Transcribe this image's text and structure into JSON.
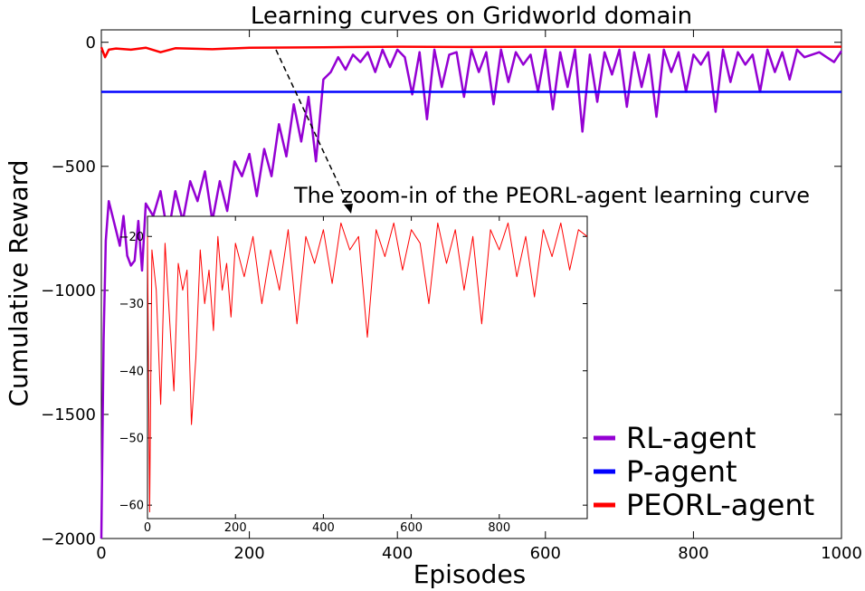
{
  "chart_data": [
    {
      "type": "line",
      "title": "Learning curves on Gridworld domain",
      "xlabel": "Episodes",
      "ylabel": "Cumulative Reward",
      "xlim": [
        0,
        1000
      ],
      "ylim": [
        -2000,
        50
      ],
      "xticks": [
        0,
        200,
        400,
        600,
        800,
        1000
      ],
      "yticks": [
        0,
        -500,
        -1000,
        -1500,
        -2000
      ],
      "legend_position": "bottom-right",
      "series": [
        {
          "name": "RL-agent",
          "color": "#9400d3",
          "x": [
            0,
            3,
            6,
            10,
            15,
            20,
            25,
            30,
            35,
            40,
            45,
            50,
            55,
            60,
            70,
            80,
            90,
            100,
            110,
            120,
            130,
            140,
            150,
            160,
            170,
            180,
            190,
            200,
            210,
            220,
            230,
            240,
            250,
            260,
            270,
            280,
            290,
            300,
            310,
            320,
            330,
            340,
            350,
            360,
            370,
            380,
            390,
            400,
            410,
            420,
            430,
            440,
            450,
            460,
            470,
            480,
            490,
            500,
            510,
            520,
            530,
            540,
            550,
            560,
            570,
            580,
            590,
            600,
            610,
            620,
            630,
            640,
            650,
            660,
            670,
            680,
            690,
            700,
            710,
            720,
            730,
            740,
            750,
            760,
            770,
            780,
            790,
            800,
            810,
            820,
            830,
            840,
            850,
            860,
            870,
            880,
            890,
            900,
            910,
            920,
            930,
            940,
            950,
            960,
            970,
            980,
            990,
            1000
          ],
          "values": [
            -2000,
            -1200,
            -800,
            -640,
            -700,
            -760,
            -820,
            -700,
            -860,
            -900,
            -880,
            -720,
            -920,
            -650,
            -700,
            -600,
            -780,
            -600,
            -720,
            -560,
            -640,
            -520,
            -720,
            -560,
            -680,
            -480,
            -540,
            -450,
            -620,
            -430,
            -540,
            -330,
            -460,
            -250,
            -400,
            -220,
            -480,
            -150,
            -120,
            -60,
            -110,
            -50,
            -80,
            -40,
            -120,
            -30,
            -100,
            -30,
            -60,
            -210,
            -40,
            -310,
            -30,
            -180,
            -50,
            -40,
            -220,
            -30,
            -120,
            -40,
            -250,
            -30,
            -160,
            -40,
            -90,
            -50,
            -200,
            -30,
            -270,
            -40,
            -180,
            -30,
            -360,
            -50,
            -240,
            -40,
            -130,
            -30,
            -260,
            -40,
            -180,
            -50,
            -300,
            -30,
            -120,
            -40,
            -200,
            -50,
            -90,
            -40,
            -280,
            -30,
            -160,
            -40,
            -90,
            -50,
            -200,
            -30,
            -120,
            -40,
            -150,
            -30,
            -60,
            -50,
            -40,
            -60,
            -80,
            -35
          ]
        },
        {
          "name": "P-agent",
          "color": "#0000ff",
          "x": [
            0,
            1000
          ],
          "values": [
            -200,
            -200
          ]
        },
        {
          "name": "PEORL-agent",
          "color": "#ff0000",
          "x": [
            0,
            5,
            10,
            20,
            40,
            60,
            80,
            100,
            150,
            200,
            300,
            400,
            500,
            600,
            700,
            800,
            900,
            1000
          ],
          "values": [
            -20,
            -60,
            -30,
            -25,
            -30,
            -22,
            -40,
            -24,
            -28,
            -22,
            -20,
            -18,
            -19,
            -18,
            -18,
            -18,
            -18,
            -18
          ]
        }
      ]
    },
    {
      "type": "line",
      "title": "The zoom-in of the PEORL-agent learning curve",
      "xlim": [
        0,
        1000
      ],
      "ylim": [
        -62,
        -17
      ],
      "xticks": [
        0,
        200,
        400,
        600,
        800
      ],
      "yticks": [
        -20,
        -30,
        -40,
        -50,
        -60
      ],
      "series": [
        {
          "color": "#ff0000",
          "x": [
            0,
            5,
            10,
            20,
            30,
            40,
            50,
            60,
            70,
            80,
            90,
            100,
            110,
            120,
            130,
            140,
            150,
            160,
            170,
            180,
            190,
            200,
            220,
            240,
            260,
            280,
            300,
            320,
            340,
            360,
            380,
            400,
            420,
            440,
            460,
            480,
            500,
            520,
            540,
            560,
            580,
            600,
            620,
            640,
            660,
            680,
            700,
            720,
            740,
            760,
            780,
            800,
            820,
            840,
            860,
            880,
            900,
            920,
            940,
            960,
            980,
            1000
          ],
          "values": [
            -20,
            -61,
            -22,
            -28,
            -45,
            -21,
            -32,
            -43,
            -24,
            -28,
            -25,
            -48,
            -38,
            -22,
            -30,
            -25,
            -34,
            -20,
            -28,
            -24,
            -32,
            -21,
            -26,
            -20,
            -30,
            -22,
            -28,
            -19,
            -33,
            -20,
            -24,
            -19,
            -27,
            -18,
            -22,
            -20,
            -35,
            -19,
            -23,
            -18,
            -25,
            -19,
            -21,
            -30,
            -18,
            -24,
            -19,
            -28,
            -20,
            -33,
            -19,
            -22,
            -18,
            -26,
            -20,
            -29,
            -19,
            -23,
            -18,
            -25,
            -19,
            -20
          ]
        }
      ]
    }
  ]
}
